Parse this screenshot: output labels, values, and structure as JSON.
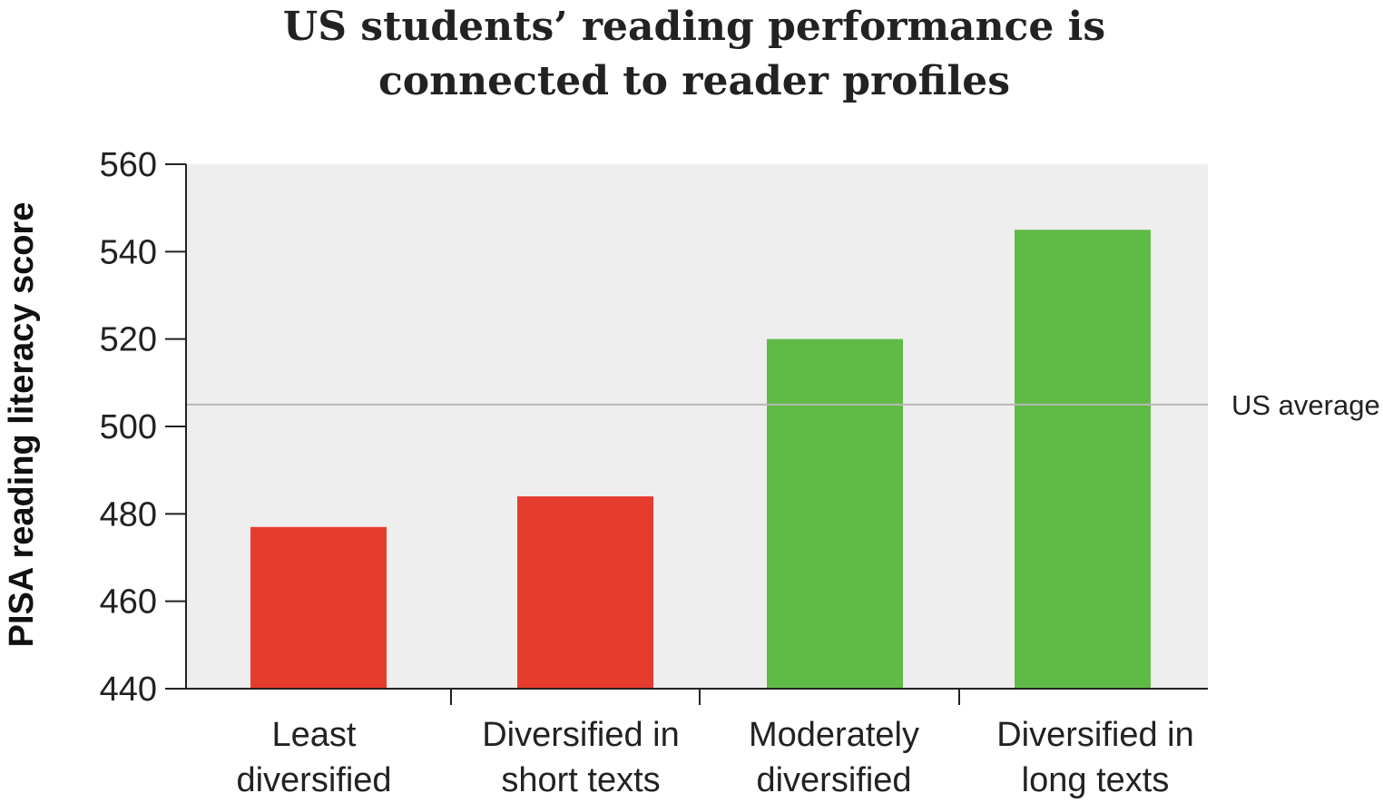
{
  "chart_data": {
    "type": "bar",
    "title_lines": [
      "US students’ reading performance is",
      "connected to reader profiles"
    ],
    "ylabel": "PISA reading literacy score",
    "xlabel": "",
    "ylim": [
      440,
      560
    ],
    "yticks": [
      "560",
      "540",
      "520",
      "500",
      "480",
      "460",
      "440"
    ],
    "ytick_values": [
      560,
      540,
      520,
      500,
      480,
      460,
      440
    ],
    "categories": [
      [
        "Least",
        "diversified"
      ],
      [
        "Diversified in",
        "short texts"
      ],
      [
        "Moderately",
        "diversified"
      ],
      [
        "Diversified in",
        "long texts"
      ]
    ],
    "values": [
      477,
      484,
      520,
      545
    ],
    "bar_colors": [
      "#e53c2e",
      "#e53c2e",
      "#60bb46",
      "#60bb46"
    ],
    "reference_line": {
      "label": "US average",
      "value": 505,
      "color": "#b8b8b8"
    },
    "plot_background": "#edeeed",
    "grid": false
  }
}
